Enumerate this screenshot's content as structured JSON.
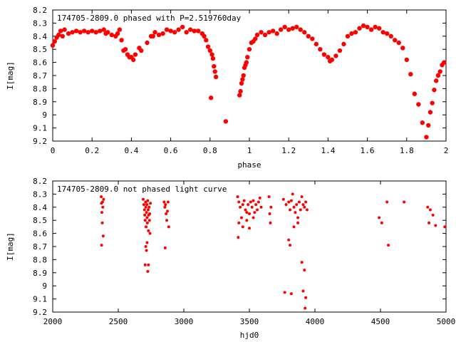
{
  "chart_data": [
    {
      "type": "scatter",
      "title": "174705-2809.0 phased with P=2.519760day",
      "xlabel": "phase",
      "ylabel": "I[mag]",
      "xlim": [
        0,
        2
      ],
      "ylim": [
        8.2,
        9.2
      ],
      "y_inverted": true,
      "x_ticks": [
        "0",
        "0.2",
        "0.4",
        "0.6",
        "0.8",
        "1",
        "1.2",
        "1.4",
        "1.6",
        "1.8",
        "2"
      ],
      "y_ticks": [
        "8.2",
        "8.3",
        "8.4",
        "8.5",
        "8.6",
        "8.7",
        "8.8",
        "8.9",
        "9",
        "9.1",
        "9.2"
      ],
      "marker_color": "#ff0000",
      "points": [
        [
          0.0,
          8.47
        ],
        [
          0.01,
          8.44
        ],
        [
          0.02,
          8.41
        ],
        [
          0.03,
          8.39
        ],
        [
          0.04,
          8.36
        ],
        [
          0.05,
          8.4
        ],
        [
          0.06,
          8.35
        ],
        [
          0.08,
          8.38
        ],
        [
          0.1,
          8.37
        ],
        [
          0.12,
          8.36
        ],
        [
          0.14,
          8.37
        ],
        [
          0.16,
          8.36
        ],
        [
          0.18,
          8.37
        ],
        [
          0.2,
          8.36
        ],
        [
          0.22,
          8.37
        ],
        [
          0.24,
          8.36
        ],
        [
          0.26,
          8.35
        ],
        [
          0.27,
          8.38
        ],
        [
          0.28,
          8.37
        ],
        [
          0.3,
          8.39
        ],
        [
          0.32,
          8.4
        ],
        [
          0.33,
          8.38
        ],
        [
          0.34,
          8.35
        ],
        [
          0.35,
          8.43
        ],
        [
          0.36,
          8.51
        ],
        [
          0.37,
          8.5
        ],
        [
          0.38,
          8.54
        ],
        [
          0.39,
          8.56
        ],
        [
          0.4,
          8.56
        ],
        [
          0.41,
          8.58
        ],
        [
          0.42,
          8.54
        ],
        [
          0.44,
          8.49
        ],
        [
          0.45,
          8.51
        ],
        [
          0.48,
          8.45
        ],
        [
          0.5,
          8.4
        ],
        [
          0.51,
          8.4
        ],
        [
          0.52,
          8.37
        ],
        [
          0.54,
          8.39
        ],
        [
          0.56,
          8.38
        ],
        [
          0.58,
          8.35
        ],
        [
          0.6,
          8.36
        ],
        [
          0.62,
          8.37
        ],
        [
          0.64,
          8.35
        ],
        [
          0.66,
          8.33
        ],
        [
          0.68,
          8.37
        ],
        [
          0.7,
          8.35
        ],
        [
          0.72,
          8.36
        ],
        [
          0.74,
          8.36
        ],
        [
          0.76,
          8.38
        ],
        [
          0.77,
          8.4
        ],
        [
          0.78,
          8.43
        ],
        [
          0.79,
          8.48
        ],
        [
          0.8,
          8.51
        ],
        [
          0.81,
          8.54
        ],
        [
          0.815,
          8.57
        ],
        [
          0.82,
          8.63
        ],
        [
          0.825,
          8.67
        ],
        [
          0.83,
          8.71
        ],
        [
          0.805,
          8.87
        ],
        [
          0.88,
          9.05
        ],
        [
          0.95,
          8.85
        ],
        [
          0.955,
          8.82
        ],
        [
          0.96,
          8.76
        ],
        [
          0.965,
          8.73
        ],
        [
          0.97,
          8.7
        ],
        [
          0.975,
          8.64
        ],
        [
          0.98,
          8.62
        ],
        [
          0.985,
          8.6
        ],
        [
          0.99,
          8.56
        ],
        [
          1.0,
          8.5
        ],
        [
          1.01,
          8.45
        ],
        [
          1.02,
          8.44
        ],
        [
          1.03,
          8.42
        ],
        [
          1.04,
          8.39
        ],
        [
          1.06,
          8.37
        ],
        [
          1.08,
          8.39
        ],
        [
          1.1,
          8.37
        ],
        [
          1.12,
          8.36
        ],
        [
          1.14,
          8.38
        ],
        [
          1.16,
          8.35
        ],
        [
          1.18,
          8.33
        ],
        [
          1.2,
          8.35
        ],
        [
          1.22,
          8.34
        ],
        [
          1.24,
          8.33
        ],
        [
          1.26,
          8.35
        ],
        [
          1.28,
          8.37
        ],
        [
          1.3,
          8.4
        ],
        [
          1.32,
          8.42
        ],
        [
          1.34,
          8.46
        ],
        [
          1.36,
          8.5
        ],
        [
          1.38,
          8.54
        ],
        [
          1.4,
          8.56
        ],
        [
          1.41,
          8.59
        ],
        [
          1.42,
          8.58
        ],
        [
          1.44,
          8.55
        ],
        [
          1.46,
          8.51
        ],
        [
          1.48,
          8.46
        ],
        [
          1.5,
          8.4
        ],
        [
          1.52,
          8.38
        ],
        [
          1.54,
          8.37
        ],
        [
          1.56,
          8.34
        ],
        [
          1.58,
          8.32
        ],
        [
          1.6,
          8.33
        ],
        [
          1.62,
          8.35
        ],
        [
          1.64,
          8.33
        ],
        [
          1.66,
          8.34
        ],
        [
          1.68,
          8.37
        ],
        [
          1.7,
          8.38
        ],
        [
          1.72,
          8.4
        ],
        [
          1.74,
          8.43
        ],
        [
          1.76,
          8.45
        ],
        [
          1.78,
          8.49
        ],
        [
          1.8,
          8.58
        ],
        [
          1.82,
          8.69
        ],
        [
          1.84,
          8.84
        ],
        [
          1.86,
          8.92
        ],
        [
          1.88,
          9.06
        ],
        [
          1.9,
          9.17
        ],
        [
          1.91,
          9.08
        ],
        [
          1.92,
          8.98
        ],
        [
          1.93,
          8.91
        ],
        [
          1.94,
          8.81
        ],
        [
          1.95,
          8.74
        ],
        [
          1.96,
          8.7
        ],
        [
          1.97,
          8.67
        ],
        [
          1.98,
          8.62
        ],
        [
          1.99,
          8.6
        ]
      ]
    },
    {
      "type": "scatter",
      "title": "174705-2809.0 not phased light curve",
      "xlabel": "hjd0",
      "ylabel": "I[mag]",
      "xlim": [
        2000,
        5000
      ],
      "ylim": [
        8.2,
        9.2
      ],
      "y_inverted": true,
      "x_ticks": [
        "2000",
        "2500",
        "3000",
        "3500",
        "4000",
        "4500",
        "5000"
      ],
      "y_ticks": [
        "8.2",
        "8.3",
        "8.4",
        "8.5",
        "8.6",
        "8.7",
        "8.8",
        "8.9",
        "9",
        "9.1",
        "9.2"
      ],
      "marker_color": "#ff0000",
      "points": [
        [
          2370,
          8.32
        ],
        [
          2372,
          8.37
        ],
        [
          2375,
          8.44
        ],
        [
          2378,
          8.52
        ],
        [
          2380,
          8.36
        ],
        [
          2382,
          8.4
        ],
        [
          2385,
          8.62
        ],
        [
          2373,
          8.69
        ],
        [
          2388,
          8.34
        ],
        [
          2690,
          8.34
        ],
        [
          2695,
          8.38
        ],
        [
          2700,
          8.42
        ],
        [
          2702,
          8.46
        ],
        [
          2705,
          8.5
        ],
        [
          2708,
          8.36
        ],
        [
          2710,
          8.4
        ],
        [
          2712,
          8.55
        ],
        [
          2715,
          8.44
        ],
        [
          2718,
          8.38
        ],
        [
          2720,
          8.48
        ],
        [
          2722,
          8.52
        ],
        [
          2725,
          8.35
        ],
        [
          2728,
          8.42
        ],
        [
          2730,
          8.58
        ],
        [
          2732,
          8.46
        ],
        [
          2735,
          8.4
        ],
        [
          2738,
          8.5
        ],
        [
          2740,
          8.45
        ],
        [
          2742,
          8.6
        ],
        [
          2745,
          8.37
        ],
        [
          2705,
          8.84
        ],
        [
          2710,
          8.7
        ],
        [
          2715,
          8.73
        ],
        [
          2720,
          8.67
        ],
        [
          2725,
          8.89
        ],
        [
          2730,
          8.84
        ],
        [
          2850,
          8.36
        ],
        [
          2855,
          8.4
        ],
        [
          2860,
          8.38
        ],
        [
          2865,
          8.45
        ],
        [
          2870,
          8.5
        ],
        [
          2875,
          8.43
        ],
        [
          2880,
          8.36
        ],
        [
          2858,
          8.71
        ],
        [
          2885,
          8.55
        ],
        [
          3410,
          8.32
        ],
        [
          3420,
          8.36
        ],
        [
          3430,
          8.4
        ],
        [
          3440,
          8.48
        ],
        [
          3450,
          8.38
        ],
        [
          3460,
          8.35
        ],
        [
          3470,
          8.42
        ],
        [
          3480,
          8.5
        ],
        [
          3490,
          8.38
        ],
        [
          3500,
          8.45
        ],
        [
          3510,
          8.36
        ],
        [
          3520,
          8.4
        ],
        [
          3530,
          8.35
        ],
        [
          3540,
          8.44
        ],
        [
          3550,
          8.38
        ],
        [
          3560,
          8.42
        ],
        [
          3570,
          8.36
        ],
        [
          3580,
          8.33
        ],
        [
          3590,
          8.4
        ],
        [
          3420,
          8.52
        ],
        [
          3450,
          8.55
        ],
        [
          3480,
          8.44
        ],
        [
          3500,
          8.56
        ],
        [
          3530,
          8.48
        ],
        [
          3415,
          8.63
        ],
        [
          3650,
          8.32
        ],
        [
          3655,
          8.45
        ],
        [
          3660,
          8.52
        ],
        [
          3665,
          8.4
        ],
        [
          3760,
          8.34
        ],
        [
          3780,
          8.38
        ],
        [
          3800,
          8.36
        ],
        [
          3810,
          8.42
        ],
        [
          3820,
          8.35
        ],
        [
          3830,
          8.3
        ],
        [
          3840,
          8.4
        ],
        [
          3850,
          8.44
        ],
        [
          3860,
          8.38
        ],
        [
          3870,
          8.48
        ],
        [
          3880,
          8.36
        ],
        [
          3890,
          8.42
        ],
        [
          3900,
          8.32
        ],
        [
          3910,
          8.38
        ],
        [
          3920,
          8.4
        ],
        [
          3930,
          8.36
        ],
        [
          3940,
          8.42
        ],
        [
          3800,
          8.65
        ],
        [
          3810,
          8.69
        ],
        [
          3840,
          8.55
        ],
        [
          3870,
          8.52
        ],
        [
          3900,
          8.82
        ],
        [
          3920,
          8.88
        ],
        [
          3770,
          9.05
        ],
        [
          3820,
          9.06
        ],
        [
          3910,
          9.04
        ],
        [
          3930,
          9.09
        ],
        [
          3925,
          9.17
        ],
        [
          4490,
          8.48
        ],
        [
          4510,
          8.52
        ],
        [
          4550,
          8.36
        ],
        [
          4560,
          8.69
        ],
        [
          4680,
          8.36
        ],
        [
          4860,
          8.4
        ],
        [
          4880,
          8.42
        ],
        [
          4900,
          8.46
        ],
        [
          4870,
          8.52
        ],
        [
          4920,
          8.54
        ],
        [
          4990,
          8.55
        ]
      ]
    }
  ]
}
